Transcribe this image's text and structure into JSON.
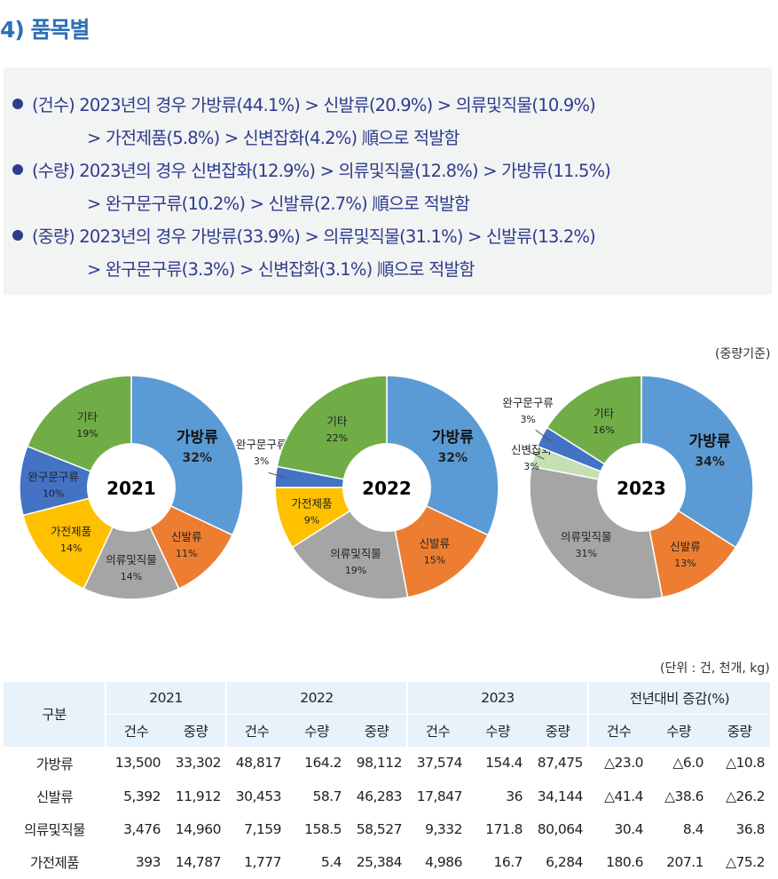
{
  "heading": "4) 품목별",
  "summary": [
    {
      "line1": "(건수) 2023년의 경우 가방류(44.1%) > 신발류(20.9%) > 의류및직물(10.9%)",
      "line2": "> 가전제품(5.8%) > 신변잡화(4.2%) 順으로 적발함"
    },
    {
      "line1": "(수량) 2023년의 경우 신변잡화(12.9%) > 의류및직물(12.8%) > 가방류(11.5%)",
      "line2": "> 완구문구류(10.2%) > 신발류(2.7%) 順으로 적발함"
    },
    {
      "line1": "(중량) 2023년의 경우 가방류(33.9%) > 의류및직물(31.1%) > 신발류(13.2%)",
      "line2": "> 완구문구류(3.3%) > 신변잡화(3.1%) 順으로 적발함"
    }
  ],
  "chart_unit": "(중량기준)",
  "colors": {
    "가방류": "#5b9bd5",
    "신발류": "#ed7d31",
    "의류및직물": "#a5a5a5",
    "가전제품": "#ffc000",
    "완구문구류": "#4472c4",
    "신변잡화": "#c5e0b4",
    "기타": "#70ad47"
  },
  "chart_data": [
    {
      "type": "pie",
      "title": "2021",
      "slices": [
        {
          "label": "가방류",
          "value": 32,
          "pct": "32%"
        },
        {
          "label": "신발류",
          "value": 11,
          "pct": "11%"
        },
        {
          "label": "의류및직물",
          "value": 14,
          "pct": "14%"
        },
        {
          "label": "가전제품",
          "value": 14,
          "pct": "14%"
        },
        {
          "label": "완구문구류",
          "value": 10,
          "pct": "10%"
        },
        {
          "label": "기타",
          "value": 19,
          "pct": "19%"
        }
      ]
    },
    {
      "type": "pie",
      "title": "2022",
      "slices": [
        {
          "label": "가방류",
          "value": 32,
          "pct": "32%"
        },
        {
          "label": "신발류",
          "value": 15,
          "pct": "15%"
        },
        {
          "label": "의류및직물",
          "value": 19,
          "pct": "19%"
        },
        {
          "label": "가전제품",
          "value": 9,
          "pct": "9%"
        },
        {
          "label": "완구문구류",
          "value": 3,
          "pct": "3%"
        },
        {
          "label": "기타",
          "value": 22,
          "pct": "22%"
        }
      ]
    },
    {
      "type": "pie",
      "title": "2023",
      "slices": [
        {
          "label": "가방류",
          "value": 34,
          "pct": "34%"
        },
        {
          "label": "신발류",
          "value": 13,
          "pct": "13%"
        },
        {
          "label": "의류및직물",
          "value": 31,
          "pct": "31%"
        },
        {
          "label": "신변잡화",
          "value": 3,
          "pct": "3%"
        },
        {
          "label": "완구문구류",
          "value": 3,
          "pct": "3%"
        },
        {
          "label": "기타",
          "value": 16,
          "pct": "16%"
        }
      ]
    }
  ],
  "table": {
    "unit": "(단위 : 건, 천개, kg)",
    "col_category": "구분",
    "groups": [
      "2021",
      "2022",
      "2023",
      "전년대비 증감(%)"
    ],
    "sub": {
      "count": "건수",
      "qty": "수량",
      "weight": "중량"
    },
    "rows": [
      {
        "cat": "가방류",
        "cells": [
          "13,500",
          "33,302",
          "48,817",
          "164.2",
          "98,112",
          "37,574",
          "154.4",
          "87,475",
          "△23.0",
          "△6.0",
          "△10.8"
        ]
      },
      {
        "cat": "신발류",
        "cells": [
          "5,392",
          "11,912",
          "30,453",
          "58.7",
          "46,283",
          "17,847",
          "36",
          "34,144",
          "△41.4",
          "△38.6",
          "△26.2"
        ]
      },
      {
        "cat": "의류및직물",
        "cells": [
          "3,476",
          "14,960",
          "7,159",
          "158.5",
          "58,527",
          "9,332",
          "171.8",
          "80,064",
          "30.4",
          "8.4",
          "36.8"
        ]
      },
      {
        "cat": "가전제품",
        "cells": [
          "393",
          "14,787",
          "1,777",
          "5.4",
          "25,384",
          "4,986",
          "16.7",
          "6,284",
          "180.6",
          "207.1",
          "△75.2"
        ]
      }
    ]
  }
}
